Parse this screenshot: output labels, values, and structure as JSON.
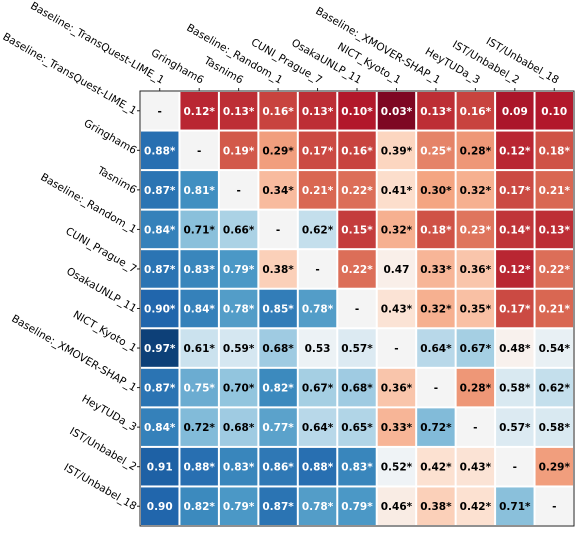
{
  "chart_data": {
    "type": "heatmap",
    "rows": [
      "Baseline:_TransQuest-LIME_1",
      "Gringham6",
      "Tasnim6",
      "Baseline:_Random_1",
      "CUNI_Prague_7",
      "OsakaUNLP_11",
      "NICT_Kyoto_1",
      "Baseline:_XMOVER-SHAP_1",
      "HeyTUDa_3",
      "IST/Unbabel_2",
      "IST/Unbabel_18"
    ],
    "columns": [
      "Baseline:_TransQuest-LIME_1",
      "Gringham6",
      "Tasnim6",
      "Baseline:_Random_1",
      "CUNI_Prague_7",
      "OsakaUNLP_11",
      "NICT_Kyoto_1",
      "Baseline:_XMOVER-SHAP_1",
      "HeyTUDa_3",
      "IST/Unbabel_2",
      "IST/Unbabel_18"
    ],
    "values": [
      [
        null,
        0.12,
        0.13,
        0.16,
        0.13,
        0.1,
        0.03,
        0.13,
        0.16,
        0.09,
        0.1
      ],
      [
        0.88,
        null,
        0.19,
        0.29,
        0.17,
        0.16,
        0.39,
        0.25,
        0.28,
        0.12,
        0.18
      ],
      [
        0.87,
        0.81,
        null,
        0.34,
        0.21,
        0.22,
        0.41,
        0.3,
        0.32,
        0.17,
        0.21
      ],
      [
        0.84,
        0.71,
        0.66,
        null,
        0.62,
        0.15,
        0.32,
        0.18,
        0.23,
        0.14,
        0.13
      ],
      [
        0.87,
        0.83,
        0.79,
        0.38,
        null,
        0.22,
        0.47,
        0.33,
        0.36,
        0.12,
        0.22
      ],
      [
        0.9,
        0.84,
        0.78,
        0.85,
        0.78,
        null,
        0.43,
        0.32,
        0.35,
        0.17,
        0.21
      ],
      [
        0.97,
        0.61,
        0.59,
        0.68,
        0.53,
        0.57,
        null,
        0.64,
        0.67,
        0.48,
        0.54
      ],
      [
        0.87,
        0.75,
        0.7,
        0.82,
        0.67,
        0.68,
        0.36,
        null,
        0.28,
        0.58,
        0.62
      ],
      [
        0.84,
        0.72,
        0.68,
        0.77,
        0.64,
        0.65,
        0.33,
        0.72,
        null,
        0.57,
        0.58
      ],
      [
        0.91,
        0.88,
        0.83,
        0.86,
        0.88,
        0.83,
        0.52,
        0.42,
        0.43,
        null,
        0.29
      ],
      [
        0.9,
        0.82,
        0.79,
        0.87,
        0.78,
        0.79,
        0.46,
        0.38,
        0.42,
        0.71,
        null
      ]
    ],
    "labels": [
      [
        "-",
        "0.12*",
        "0.13*",
        "0.16*",
        "0.13*",
        "0.10*",
        "0.03*",
        "0.13*",
        "0.16*",
        "0.09",
        "0.10"
      ],
      [
        "0.88*",
        "-",
        "0.19*",
        "0.29*",
        "0.17*",
        "0.16*",
        "0.39*",
        "0.25*",
        "0.28*",
        "0.12*",
        "0.18*"
      ],
      [
        "0.87*",
        "0.81*",
        "-",
        "0.34*",
        "0.21*",
        "0.22*",
        "0.41*",
        "0.30*",
        "0.32*",
        "0.17*",
        "0.21*"
      ],
      [
        "0.84*",
        "0.71*",
        "0.66*",
        "-",
        "0.62*",
        "0.15*",
        "0.32*",
        "0.18*",
        "0.23*",
        "0.14*",
        "0.13*"
      ],
      [
        "0.87*",
        "0.83*",
        "0.79*",
        "0.38*",
        "-",
        "0.22*",
        "0.47",
        "0.33*",
        "0.36*",
        "0.12*",
        "0.22*"
      ],
      [
        "0.90*",
        "0.84*",
        "0.78*",
        "0.85*",
        "0.78*",
        "-",
        "0.43*",
        "0.32*",
        "0.35*",
        "0.17*",
        "0.21*"
      ],
      [
        "0.97*",
        "0.61*",
        "0.59*",
        "0.68*",
        "0.53",
        "0.57*",
        "-",
        "0.64*",
        "0.67*",
        "0.48*",
        "0.54*"
      ],
      [
        "0.87*",
        "0.75*",
        "0.70*",
        "0.82*",
        "0.67*",
        "0.68*",
        "0.36*",
        "-",
        "0.28*",
        "0.58*",
        "0.62*"
      ],
      [
        "0.84*",
        "0.72*",
        "0.68*",
        "0.77*",
        "0.64*",
        "0.65*",
        "0.33*",
        "0.72*",
        "-",
        "0.57*",
        "0.58*"
      ],
      [
        "0.91",
        "0.88*",
        "0.83*",
        "0.86*",
        "0.88*",
        "0.83*",
        "0.52*",
        "0.42*",
        "0.43*",
        "-",
        "0.29*"
      ],
      [
        "0.90",
        "0.82*",
        "0.79*",
        "0.87*",
        "0.78*",
        "0.79*",
        "0.46*",
        "0.38*",
        "0.42*",
        "0.71*",
        "-"
      ]
    ],
    "value_range": [
      0,
      1
    ],
    "colormap": "RdBu (low = red, 0.5 = white, high = blue)",
    "diagonal_color": "#f4f4f4",
    "grid": false,
    "legend": "none",
    "xlabel": "",
    "ylabel": "",
    "title": ""
  }
}
